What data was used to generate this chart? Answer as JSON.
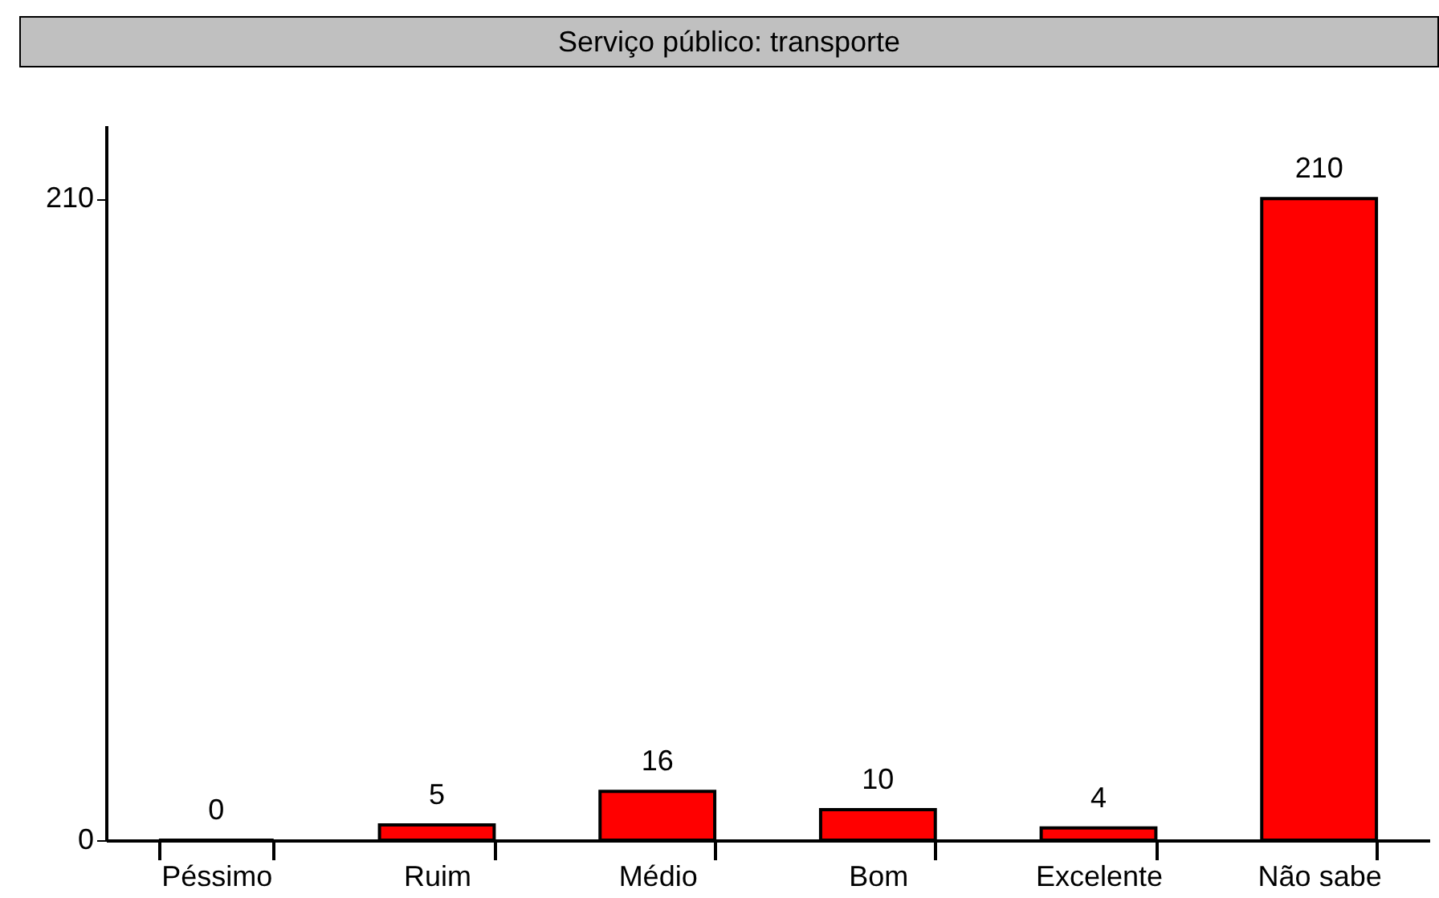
{
  "chart_data": {
    "type": "bar",
    "title": "Serviço público: transporte",
    "categories": [
      "Péssimo",
      "Ruim",
      "Médio",
      "Bom",
      "Excelente",
      "Não sabe"
    ],
    "values": [
      0,
      5,
      16,
      10,
      4,
      210
    ],
    "color": "#ff0000",
    "ylim": [
      0,
      234
    ],
    "yticks": [
      0,
      210
    ],
    "grid": false,
    "data_labels": true
  }
}
